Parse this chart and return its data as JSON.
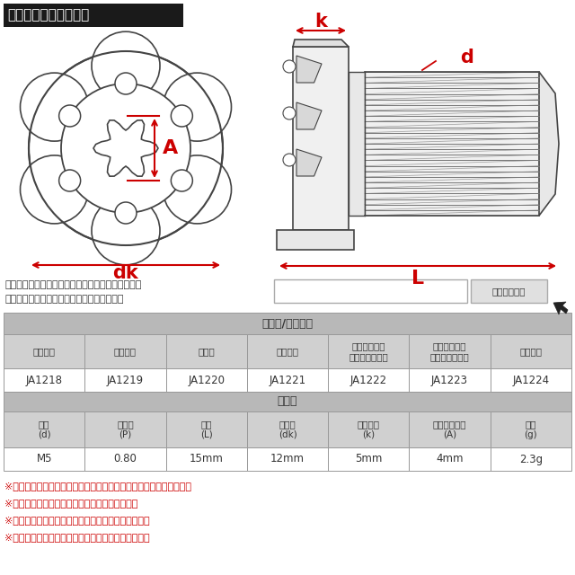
{
  "title_text": "ラインアップ＆サイズ",
  "title_bg": "#1a1a1a",
  "title_color": "#ffffff",
  "bg_color": "#ffffff",
  "search_text1": "ストア内検索に商品番号を入力していただけますと",
  "search_text2": "お探しの商品に素早くアクセスができます。",
  "search_button": "ストア内検索",
  "table_header1": "カラー/当店品番",
  "table_header2": "サイズ",
  "color_headers": [
    "シルバー",
    "グリーン",
    "ブルー",
    "ゴールド",
    "ライトカラー\n（レインボー）",
    "ダークカラー\n（焼きチタン）",
    "ブラック"
  ],
  "product_nums": [
    "JA1218",
    "JA1219",
    "JA1220",
    "JA1221",
    "JA1222",
    "JA1223",
    "JA1224"
  ],
  "size_headers": [
    "呼び\n(d)",
    "ピッチ\n(P)",
    "長さ\n(L)",
    "頭部径\n(dk)",
    "頭部高さ\n(k)",
    "トルクス穴径\n(A)",
    "重量\n(g)"
  ],
  "size_values": [
    "M5",
    "0.80",
    "15mm",
    "12mm",
    "5mm",
    "4mm",
    "2.3g"
  ],
  "notes": [
    "※記載のサイズ・重量は平均値です。個体により誤差がございます。",
    "※個体差により着色が異なる場合がございます。",
    "※製造ロットにより仕様が変わる場合がございます。",
    "※ご注文後のサイズやカラーのご変更は出来ません。"
  ],
  "notes_color": "#cc0000",
  "red_color": "#cc0000",
  "table_border": "#999999",
  "table_header_bg": "#b8b8b8",
  "table_subheader_bg": "#d0d0d0",
  "table_white_bg": "#ffffff"
}
